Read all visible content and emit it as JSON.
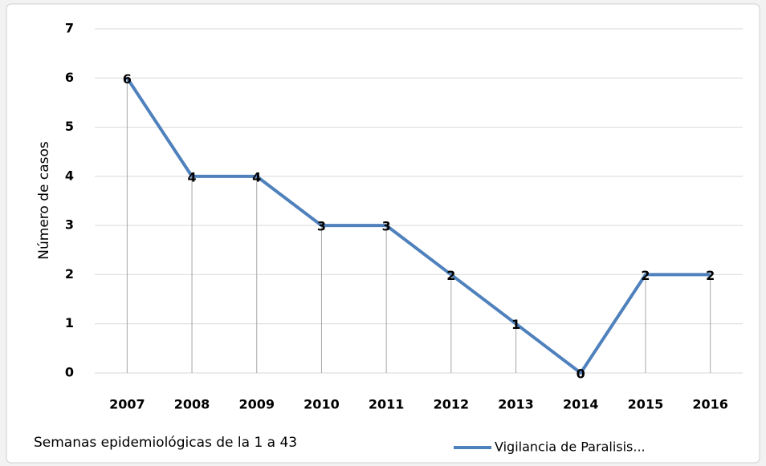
{
  "chart_data": {
    "type": "line",
    "x_label": "Semanas epidemiológicas de la 1 a 43",
    "y_label": "Número de casos",
    "categories": [
      "2007",
      "2008",
      "2009",
      "2010",
      "2011",
      "2012",
      "2013",
      "2014",
      "2015",
      "2016"
    ],
    "series": [
      {
        "name": "Vigilancia de Paralisis...",
        "color": "#4f81bd",
        "values": [
          6,
          4,
          4,
          3,
          3,
          2,
          1,
          0,
          2,
          2
        ]
      }
    ],
    "ylim": [
      0,
      7
    ],
    "yticks": [
      0,
      1,
      2,
      3,
      4,
      5,
      6,
      7
    ],
    "grid": true,
    "drop_lines": true,
    "data_labels": true,
    "legend": "bottom"
  }
}
